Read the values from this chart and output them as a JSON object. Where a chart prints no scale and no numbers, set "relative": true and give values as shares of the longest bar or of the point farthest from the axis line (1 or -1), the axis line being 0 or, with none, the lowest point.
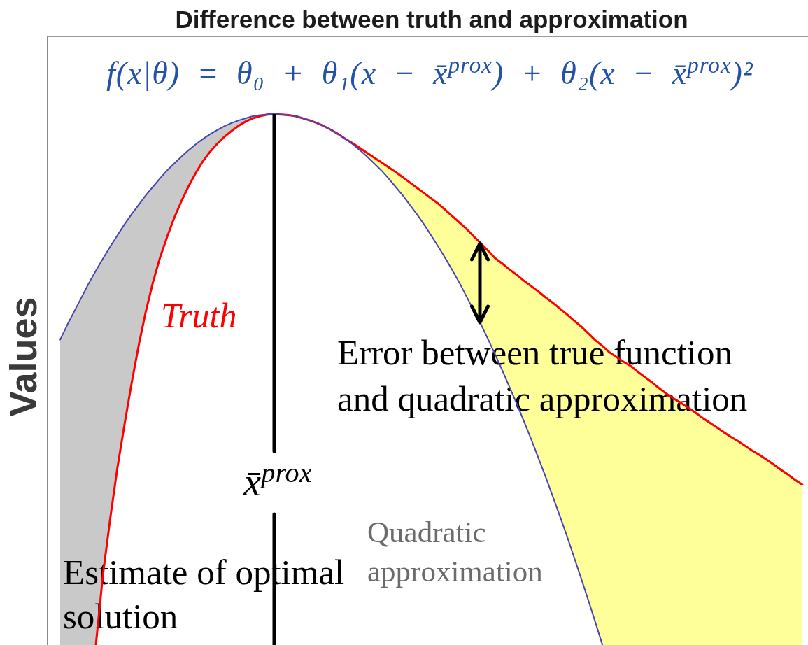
{
  "chart_data": {
    "type": "line",
    "title": "Difference between truth and approximation",
    "ylabel": "Values",
    "relative": true,
    "marker": "none",
    "categories": [
      null,
      null,
      null,
      null,
      null,
      null,
      null,
      null,
      null,
      null,
      null,
      null,
      null,
      null,
      null,
      null,
      null,
      null,
      null,
      null,
      null,
      null,
      null,
      null,
      null,
      null,
      null,
      null,
      null,
      null,
      null,
      null,
      null,
      null,
      null,
      null,
      null,
      null,
      null,
      null,
      null,
      null,
      null,
      null,
      null,
      null,
      null,
      null,
      null,
      null,
      null,
      null,
      null,
      null,
      null,
      null,
      null,
      null,
      null,
      null,
      null,
      null,
      null,
      null,
      null,
      null,
      null,
      null,
      null,
      null,
      null,
      null,
      null,
      null,
      null,
      null,
      null,
      null,
      null,
      null,
      null,
      null,
      null,
      null,
      null,
      null,
      null,
      null,
      null,
      null,
      null,
      null,
      null,
      null,
      null,
      null,
      null,
      null,
      null,
      null,
      null,
      null,
      null,
      null,
      null
    ],
    "series": [
      {
        "name": "Quadratic approximation",
        "color": "#4646b4",
        "values": [
          0.575,
          0.603,
          0.629,
          0.655,
          0.681,
          0.705,
          0.728,
          0.75,
          0.771,
          0.792,
          0.811,
          0.829,
          0.847,
          0.863,
          0.879,
          0.894,
          0.907,
          0.92,
          0.932,
          0.943,
          0.953,
          0.962,
          0.97,
          0.977,
          0.983,
          0.988,
          0.992,
          0.996,
          0.998,
          0.999,
          1,
          0.999,
          0.998,
          0.996,
          0.992,
          0.988,
          0.983,
          0.977,
          0.97,
          0.962,
          0.953,
          0.943,
          0.932,
          0.92,
          0.907,
          0.894,
          0.879,
          0.863,
          0.847,
          0.829,
          0.811,
          0.792,
          0.771,
          0.75,
          0.728,
          0.705,
          0.681,
          0.655,
          0.629,
          0.603,
          0.575,
          0.546,
          0.516,
          0.485,
          0.454,
          0.421,
          0.388,
          0.353,
          0.318,
          0.281,
          0.244,
          0.206,
          0.166,
          0.126,
          0.085,
          0.043,
          0,
          null,
          null,
          null,
          null,
          null,
          null,
          null,
          null,
          null,
          null,
          null,
          null,
          null,
          null,
          null,
          null,
          null,
          null,
          null,
          null,
          null,
          null,
          null,
          null,
          null,
          null,
          null,
          null
        ]
      },
      {
        "name": "Truth",
        "color": "#ff0000",
        "values": [
          null,
          null,
          null,
          null,
          null,
          0,
          0.133,
          0.237,
          0.332,
          0.414,
          0.492,
          0.564,
          0.628,
          0.683,
          0.73,
          0.769,
          0.805,
          0.836,
          0.864,
          0.889,
          0.911,
          0.929,
          0.944,
          0.957,
          0.968,
          0.978,
          0.986,
          0.992,
          0.996,
          0.999,
          1,
          0.999,
          0.998,
          0.996,
          0.992,
          0.988,
          0.983,
          0.977,
          0.97,
          0.962,
          0.953,
          0.945,
          0.936,
          0.927,
          0.918,
          0.909,
          0.9,
          0.891,
          0.881,
          0.871,
          0.861,
          0.851,
          0.841,
          0.831,
          0.819,
          0.807,
          0.795,
          0.783,
          0.769,
          0.756,
          0.742,
          0.728,
          0.718,
          0.707,
          0.697,
          0.686,
          0.676,
          0.666,
          0.655,
          0.645,
          0.634,
          0.623,
          0.611,
          0.6,
          0.587,
          0.574,
          0.563,
          0.551,
          0.542,
          0.533,
          0.525,
          0.514,
          0.504,
          0.494,
          0.483,
          0.473,
          0.464,
          0.456,
          0.447,
          0.438,
          0.428,
          0.419,
          0.41,
          0.401,
          0.392,
          0.384,
          0.375,
          0.366,
          0.358,
          0.349,
          0.34,
          0.33,
          0.321,
          0.311,
          0.302
        ]
      },
      {
        "type": "area",
        "color": "#c9c9c9",
        "values": [
          null,
          null,
          null,
          null,
          null,
          null,
          null,
          null,
          null,
          null,
          null,
          null,
          null,
          null,
          null,
          null,
          null,
          null,
          null,
          null,
          null,
          null,
          null,
          null,
          null,
          null,
          null,
          null,
          null,
          null,
          null,
          null,
          null,
          null,
          null,
          null,
          null,
          null,
          null,
          null,
          null,
          null,
          null,
          null,
          null,
          null,
          null,
          null,
          null,
          null,
          null,
          null,
          null,
          null,
          null,
          null,
          null,
          null,
          null,
          null,
          null,
          null,
          null,
          null,
          null,
          null,
          null,
          null,
          null,
          null,
          null,
          null,
          null,
          null,
          null,
          null,
          null,
          null,
          null,
          null,
          null,
          null,
          null,
          null,
          null,
          null,
          null,
          null,
          null,
          null,
          null,
          null,
          null,
          null,
          null,
          null,
          null,
          null,
          null,
          null,
          null,
          null,
          null,
          null,
          null
        ],
        "lower": [
          0,
          0,
          0,
          0,
          0,
          0,
          0.133,
          0.237,
          0.332,
          0.414,
          0.492,
          0.564,
          0.628,
          0.683,
          0.73,
          0.769,
          0.805,
          0.836,
          0.864,
          0.889,
          0.911,
          0.929,
          0.944,
          0.957,
          0.968,
          0.978,
          0.986,
          0.992,
          0.996,
          0.999,
          1,
          null,
          null,
          null,
          null,
          null,
          null,
          null,
          null,
          null,
          null,
          null,
          null,
          null,
          null,
          null,
          null,
          null,
          null,
          null,
          null,
          null,
          null,
          null,
          null,
          null,
          null,
          null,
          null,
          null,
          null,
          null,
          null,
          null,
          null,
          null,
          null,
          null,
          null,
          null,
          null,
          null,
          null,
          null,
          null,
          null,
          null,
          null,
          null,
          null,
          null,
          null,
          null,
          null,
          null,
          null,
          null,
          null,
          null,
          null,
          null,
          null,
          null,
          null,
          null,
          null,
          null,
          null,
          null,
          null,
          null,
          null,
          null,
          null,
          null
        ],
        "upper": [
          0.575,
          0.603,
          0.629,
          0.655,
          0.681,
          0.705,
          0.728,
          0.75,
          0.771,
          0.792,
          0.811,
          0.829,
          0.847,
          0.863,
          0.879,
          0.894,
          0.907,
          0.92,
          0.932,
          0.943,
          0.953,
          0.962,
          0.97,
          0.977,
          0.983,
          0.988,
          0.992,
          0.996,
          0.998,
          0.999,
          1,
          null,
          null,
          null,
          null,
          null,
          null,
          null,
          null,
          null,
          null,
          null,
          null,
          null,
          null,
          null,
          null,
          null,
          null,
          null,
          null,
          null,
          null,
          null,
          null,
          null,
          null,
          null,
          null,
          null,
          null,
          null,
          null,
          null,
          null,
          null,
          null,
          null,
          null,
          null,
          null,
          null,
          null,
          null,
          null,
          null,
          null,
          null,
          null,
          null,
          null,
          null,
          null,
          null,
          null,
          null,
          null,
          null,
          null,
          null,
          null,
          null,
          null,
          null,
          null,
          null,
          null,
          null,
          null,
          null,
          null,
          null,
          null,
          null,
          null
        ]
      },
      {
        "type": "area",
        "color": "#ffff99",
        "values": [
          null,
          null,
          null,
          null,
          null,
          null,
          null,
          null,
          null,
          null,
          null,
          null,
          null,
          null,
          null,
          null,
          null,
          null,
          null,
          null,
          null,
          null,
          null,
          null,
          null,
          null,
          null,
          null,
          null,
          null,
          null,
          null,
          null,
          null,
          null,
          null,
          null,
          null,
          null,
          null,
          null,
          null,
          null,
          null,
          null,
          null,
          null,
          null,
          null,
          null,
          null,
          null,
          null,
          null,
          null,
          null,
          null,
          null,
          null,
          null,
          null,
          null,
          null,
          null,
          null,
          null,
          null,
          null,
          null,
          null,
          null,
          null,
          null,
          null,
          null,
          null,
          null,
          null,
          null,
          null,
          null,
          null,
          null,
          null,
          null,
          null,
          null,
          null,
          null,
          null,
          null,
          null,
          null,
          null,
          null,
          null,
          null,
          null,
          null,
          null,
          null,
          null,
          null,
          null,
          null
        ],
        "lower": [
          null,
          null,
          null,
          null,
          null,
          null,
          null,
          null,
          null,
          null,
          null,
          null,
          null,
          null,
          null,
          null,
          null,
          null,
          null,
          null,
          null,
          null,
          null,
          null,
          null,
          null,
          null,
          null,
          null,
          null,
          1,
          0.999,
          0.998,
          0.996,
          0.992,
          0.988,
          0.983,
          0.977,
          0.97,
          0.962,
          0.953,
          0.943,
          0.932,
          0.92,
          0.907,
          0.894,
          0.879,
          0.863,
          0.847,
          0.829,
          0.811,
          0.792,
          0.771,
          0.75,
          0.728,
          0.705,
          0.681,
          0.655,
          0.629,
          0.603,
          0.575,
          0.546,
          0.516,
          0.485,
          0.454,
          0.421,
          0.388,
          0.353,
          0.318,
          0.281,
          0.244,
          0.206,
          0.166,
          0.126,
          0.085,
          0.043,
          0,
          0,
          0,
          0,
          0,
          0,
          0,
          0,
          0,
          0,
          0,
          0,
          0,
          0,
          0,
          0,
          0,
          0,
          0,
          0,
          0,
          0,
          0,
          0,
          0,
          0,
          0,
          0,
          0
        ],
        "upper": [
          null,
          null,
          null,
          null,
          null,
          null,
          null,
          null,
          null,
          null,
          null,
          null,
          null,
          null,
          null,
          null,
          null,
          null,
          null,
          null,
          null,
          null,
          null,
          null,
          null,
          null,
          null,
          null,
          null,
          null,
          1,
          0.999,
          0.998,
          0.996,
          0.992,
          0.988,
          0.983,
          0.977,
          0.97,
          0.962,
          0.953,
          0.945,
          0.936,
          0.927,
          0.918,
          0.909,
          0.9,
          0.891,
          0.881,
          0.871,
          0.861,
          0.851,
          0.841,
          0.831,
          0.819,
          0.807,
          0.795,
          0.783,
          0.769,
          0.756,
          0.742,
          0.728,
          0.718,
          0.707,
          0.697,
          0.686,
          0.676,
          0.666,
          0.655,
          0.645,
          0.634,
          0.623,
          0.611,
          0.6,
          0.587,
          0.574,
          0.563,
          0.551,
          0.542,
          0.533,
          0.525,
          0.514,
          0.504,
          0.494,
          0.483,
          0.473,
          0.464,
          0.456,
          0.447,
          0.438,
          0.428,
          0.419,
          0.41,
          0.401,
          0.392,
          0.384,
          0.375,
          0.366,
          0.358,
          0.349,
          0.34,
          0.33,
          0.321,
          0.311,
          0.302
        ]
      }
    ],
    "annotations": [
      "f(x|θ) = θ₀ + θ₁(x − x̄$^{prox}$) + θ₂(x − x̄$^{prox}$)²",
      "Error between true function and quadratic approximation",
      "x̄$^{prox}$",
      "Estimate of optimal solution"
    ]
  }
}
